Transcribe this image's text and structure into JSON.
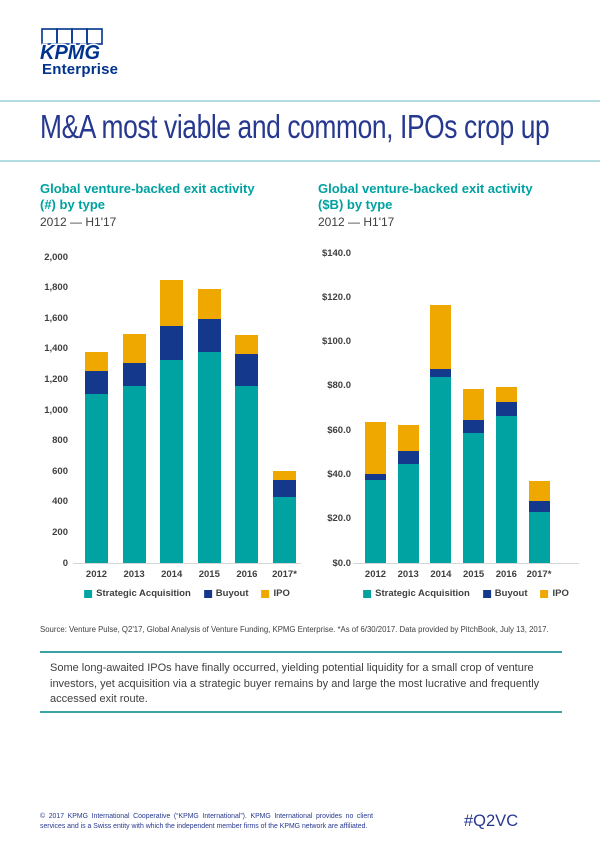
{
  "page": {
    "logo": {
      "brand": "KPMG",
      "sub": "Enterprise"
    },
    "title": "M&A most viable and common, IPOs crop up",
    "source_note": "Source: Venture Pulse, Q2'17, Global Analysis of Venture Funding, KPMG Enterprise. *As of 6/30/2017. Data provided by PitchBook, July 13, 2017.",
    "callout": "Some long-awaited IPOs have finally occurred, yielding potential liquidity for a small crop of venture investors, yet acquisition via a strategic buyer remains by and large the most lucrative and frequently accessed exit route.",
    "footer": {
      "copyright": "© 2017 KPMG International Cooperative (“KPMG International”). KPMG International provides no client services and is a Swiss entity with which the independent member firms of the KPMG network are affiliated.",
      "hashtag": "#Q2VC"
    }
  },
  "colors": {
    "brand_blue": "#00338d",
    "heading_teal": "#00a1a1",
    "bar_teal": "#00a3a1",
    "bar_blue": "#14398c",
    "bar_gold": "#efa800",
    "rule_light_teal": "#b2dce0",
    "rule_teal": "#3ba2a8",
    "text_gray": "#404040"
  },
  "chart_data": [
    {
      "type": "bar",
      "stacked": true,
      "title": "Global venture-backed exit activity (#) by type",
      "title_lines": [
        "Global venture-backed exit activity",
        "(#) by type"
      ],
      "subtitle": "2012 — H1'17",
      "categories": [
        "2012",
        "2013",
        "2014",
        "2015",
        "2016",
        "2017*"
      ],
      "series": [
        {
          "name": "Strategic Acquisition",
          "color": "#00a3a1",
          "values": [
            1106,
            1154,
            1330,
            1378,
            1160,
            433
          ]
        },
        {
          "name": "Buyout",
          "color": "#14398c",
          "values": [
            146,
            155,
            216,
            214,
            203,
            109
          ]
        },
        {
          "name": "IPO",
          "color": "#efa800",
          "values": [
            126,
            185,
            306,
            196,
            124,
            61
          ]
        }
      ],
      "totals": [
        1378,
        1494,
        1852,
        1788,
        1487,
        603
      ],
      "ylim": [
        0,
        2000
      ],
      "ytick_step": 200,
      "ytick_labels": [
        "0",
        "200",
        "400",
        "600",
        "800",
        "1,000",
        "1,200",
        "1,400",
        "1,600",
        "1,800",
        "2,000"
      ],
      "grid": false,
      "legend_position": "bottom"
    },
    {
      "type": "bar",
      "stacked": true,
      "title": "Global venture-backed exit activity ($B) by type",
      "title_lines": [
        "Global venture-backed exit activity",
        "($B) by type"
      ],
      "subtitle": "2012 — H1'17",
      "categories": [
        "2012",
        "2013",
        "2014",
        "2015",
        "2016",
        "2017*"
      ],
      "series": [
        {
          "name": "Strategic Acquisition",
          "color": "#00a3a1",
          "values": [
            37.7,
            44.8,
            83.9,
            58.6,
            66.2,
            22.9
          ]
        },
        {
          "name": "Buyout",
          "color": "#14398c",
          "values": [
            2.5,
            6.0,
            3.5,
            6.1,
            6.7,
            5.3
          ]
        },
        {
          "name": "IPO",
          "color": "#efa800",
          "values": [
            23.4,
            11.7,
            28.9,
            14.0,
            6.8,
            8.7
          ]
        }
      ],
      "totals": [
        63.6,
        62.5,
        116.3,
        78.7,
        79.7,
        36.9
      ],
      "ylim": [
        0,
        140
      ],
      "ytick_step": 20,
      "ytick_labels": [
        "$0.0",
        "$20.0",
        "$40.0",
        "$60.0",
        "$80.0",
        "$100.0",
        "$120.0",
        "$140.0"
      ],
      "grid": false,
      "legend_position": "bottom"
    }
  ]
}
